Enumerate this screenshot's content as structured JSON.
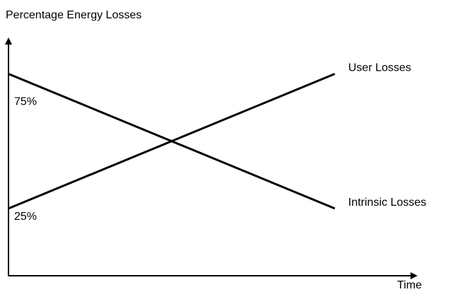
{
  "chart_data": {
    "type": "line",
    "y_label": "Percentage Energy Losses",
    "x_label": "Time",
    "categories": [
      null,
      null
    ],
    "series": [
      {
        "name": "Intrinsic Losses",
        "color": "#000000",
        "values": [
          75,
          25
        ],
        "value_labels": [
          "75%",
          null
        ]
      },
      {
        "name": "User Losses",
        "color": "#000000",
        "values": [
          25,
          75
        ],
        "value_labels": [
          "25%",
          null
        ]
      }
    ],
    "ylim": [
      0,
      88
    ]
  }
}
